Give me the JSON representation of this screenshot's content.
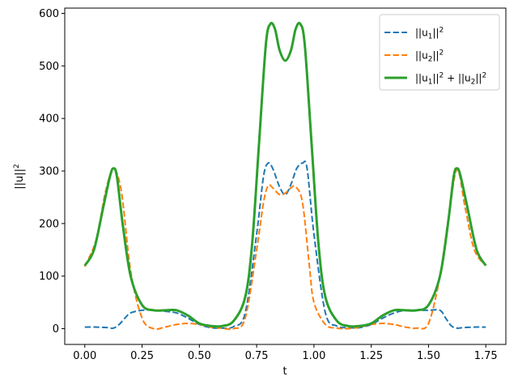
{
  "chart_data": {
    "type": "line",
    "xlabel": "t",
    "ylabel": "||u||²",
    "xlim": [
      -0.0875,
      1.8375
    ],
    "ylim": [
      -30,
      610
    ],
    "xticks": [
      0.0,
      0.25,
      0.5,
      0.75,
      1.0,
      1.25,
      1.5,
      1.75
    ],
    "xtick_labels": [
      "0.00",
      "0.25",
      "0.50",
      "0.75",
      "1.00",
      "1.25",
      "1.50",
      "1.75"
    ],
    "yticks": [
      0,
      100,
      200,
      300,
      400,
      500,
      600
    ],
    "ytick_labels": [
      "0",
      "100",
      "200",
      "300",
      "400",
      "500",
      "600"
    ],
    "legend_position": "top-right",
    "grid": false,
    "series": [
      {
        "name": "||u₁||²",
        "legend_label": {
          "base": "||u",
          "sub": "1",
          "close": "||",
          "sup": "2"
        },
        "color": "#1f77b4",
        "style": "dashed",
        "x": [
          0.0,
          0.05,
          0.1,
          0.125,
          0.15,
          0.175,
          0.2,
          0.25,
          0.3,
          0.35,
          0.4,
          0.45,
          0.5,
          0.55,
          0.6,
          0.65,
          0.7,
          0.75,
          0.78,
          0.8,
          0.82,
          0.85,
          0.875,
          0.9,
          0.925,
          0.95,
          0.97,
          1.0,
          1.05,
          1.1,
          1.15,
          1.2,
          1.25,
          1.3,
          1.35,
          1.4,
          1.45,
          1.5,
          1.55,
          1.575,
          1.6,
          1.625,
          1.65,
          1.7,
          1.75
        ],
        "y": [
          3,
          3,
          2,
          1,
          8,
          20,
          30,
          35,
          35,
          33,
          30,
          20,
          8,
          2,
          1,
          4,
          30,
          180,
          290,
          315,
          305,
          270,
          255,
          275,
          305,
          315,
          305,
          180,
          30,
          5,
          2,
          2,
          8,
          20,
          30,
          35,
          35,
          35,
          35,
          20,
          5,
          1,
          2,
          3,
          3
        ]
      },
      {
        "name": "||u₂||²",
        "legend_label": {
          "base": "||u",
          "sub": "2",
          "close": "||",
          "sup": "2"
        },
        "color": "#ff7f0e",
        "style": "dashed",
        "x": [
          0.0,
          0.05,
          0.09,
          0.125,
          0.16,
          0.2,
          0.25,
          0.3,
          0.35,
          0.4,
          0.45,
          0.5,
          0.55,
          0.6,
          0.65,
          0.7,
          0.75,
          0.78,
          0.8,
          0.82,
          0.85,
          0.875,
          0.9,
          0.92,
          0.95,
          0.98,
          1.0,
          1.05,
          1.1,
          1.15,
          1.2,
          1.25,
          1.3,
          1.35,
          1.4,
          1.45,
          1.5,
          1.55,
          1.59,
          1.625,
          1.66,
          1.7,
          1.75
        ],
        "y": [
          118,
          170,
          260,
          303,
          260,
          110,
          20,
          0,
          3,
          8,
          10,
          8,
          3,
          1,
          0,
          20,
          150,
          240,
          272,
          268,
          255,
          258,
          268,
          270,
          240,
          120,
          50,
          8,
          1,
          0,
          3,
          8,
          10,
          8,
          3,
          1,
          10,
          100,
          220,
          303,
          230,
          150,
          120
        ]
      },
      {
        "name": "||u₁||² + ||u₂||²",
        "legend_label": {
          "base": "||u",
          "sub": "1",
          "close": "||",
          "sup": "2",
          "plus": " + ",
          "base2": "||u",
          "sub2": "2",
          "close2": "||",
          "sup2": "2"
        },
        "color": "#2ca02c",
        "style": "solid",
        "x": [
          0.0,
          0.04,
          0.08,
          0.11,
          0.125,
          0.14,
          0.165,
          0.2,
          0.25,
          0.3,
          0.35,
          0.4,
          0.45,
          0.5,
          0.55,
          0.6,
          0.65,
          0.7,
          0.73,
          0.76,
          0.79,
          0.81,
          0.83,
          0.85,
          0.875,
          0.9,
          0.92,
          0.94,
          0.96,
          0.99,
          1.02,
          1.05,
          1.1,
          1.15,
          1.2,
          1.25,
          1.3,
          1.35,
          1.4,
          1.45,
          1.5,
          1.55,
          1.585,
          1.61,
          1.625,
          1.64,
          1.67,
          1.71,
          1.75
        ],
        "y": [
          120,
          150,
          230,
          290,
          305,
          290,
          200,
          100,
          45,
          35,
          35,
          35,
          25,
          10,
          5,
          5,
          15,
          60,
          160,
          350,
          540,
          580,
          570,
          530,
          510,
          530,
          570,
          580,
          540,
          350,
          160,
          60,
          15,
          5,
          5,
          10,
          25,
          35,
          35,
          35,
          45,
          100,
          200,
          290,
          305,
          290,
          230,
          150,
          120
        ]
      }
    ]
  }
}
